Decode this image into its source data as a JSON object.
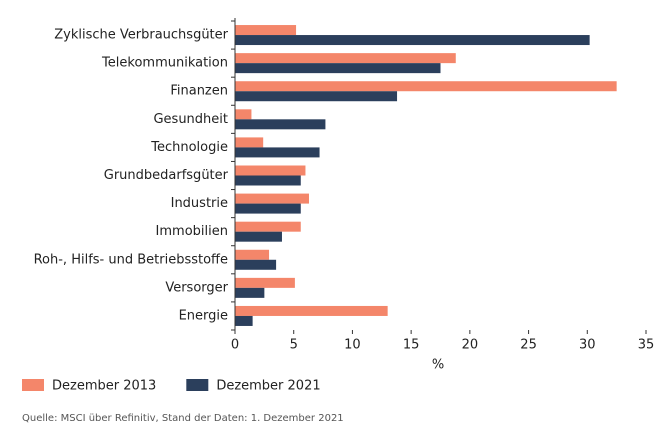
{
  "chart_data": {
    "type": "hbar",
    "categories": [
      "Zyklische Verbrauchsgüter",
      "Telekommunikation",
      "Finanzen",
      "Gesundheit",
      "Technologie",
      "Grundbedarfsgüter",
      "Industrie",
      "Immobilien",
      "Roh-, Hilfs- und Betriebsstoffe",
      "Versorger",
      "Energie"
    ],
    "series": [
      {
        "name": "Dezember 2013",
        "color": "#f4866a",
        "values": [
          5.2,
          18.8,
          32.5,
          1.4,
          2.4,
          6.0,
          6.3,
          5.6,
          2.9,
          5.1,
          13.0
        ]
      },
      {
        "name": "Dezember 2021",
        "color": "#2b3f5c",
        "values": [
          30.2,
          17.5,
          13.8,
          7.7,
          7.2,
          5.6,
          5.6,
          4.0,
          3.5,
          2.5,
          1.5
        ]
      }
    ],
    "xlabel": "%",
    "xlim": [
      0,
      35
    ],
    "xticks": [
      0,
      5,
      10,
      15,
      20,
      25,
      30,
      35
    ],
    "source": "Quelle: MSCI über Refinitiv, Stand der Daten: 1. Dezember 2021"
  }
}
